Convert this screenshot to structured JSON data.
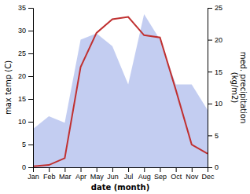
{
  "chart_data": {
    "type": "line",
    "categories": [
      "Jan",
      "Feb",
      "Mar",
      "Apr",
      "May",
      "Jun",
      "Jul",
      "Aug",
      "Sep",
      "Oct",
      "Nov",
      "Dec"
    ],
    "series": [
      {
        "type": "line",
        "color": "#c03030",
        "values": [
          0.2,
          0.5,
          2.0,
          22.0,
          29.5,
          32.5,
          33.0,
          29.0,
          28.5,
          17.0,
          5.0,
          3.0
        ]
      },
      {
        "type": "area",
        "color": "#b8c4ee",
        "axis": "y2",
        "values": [
          6.0,
          8.0,
          7.0,
          20.0,
          21.0,
          19.0,
          13.0,
          24.0,
          20.0,
          13.0,
          13.0,
          9.0
        ]
      }
    ],
    "xlabel": "date (month)",
    "ylabel": "max temp (C)",
    "y2label": "med. precipitation\n(kg/m2)",
    "ylim": [
      0,
      35
    ],
    "yticks": [
      0,
      5,
      10,
      15,
      20,
      25,
      30,
      35
    ],
    "y2lim": [
      0,
      25
    ],
    "y2ticks": [
      0,
      5,
      10,
      15,
      20,
      25
    ]
  }
}
